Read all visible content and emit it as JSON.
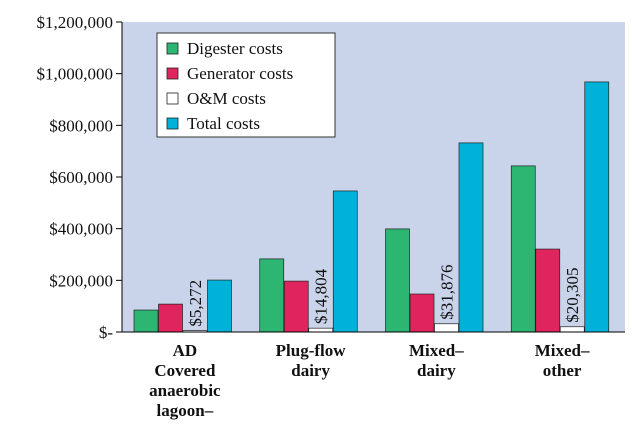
{
  "chart_data": {
    "type": "bar",
    "categories": [
      "AD Covered anaerobic lagoon–swine",
      "Plug-flow dairy",
      "Mixed–dairy",
      "Mixed–other"
    ],
    "series": [
      {
        "name": "Digester costs",
        "color": "#2db672",
        "values": [
          85000,
          283000,
          399000,
          643000
        ]
      },
      {
        "name": "Generator costs",
        "color": "#e0245e",
        "values": [
          108000,
          197000,
          147000,
          321000
        ]
      },
      {
        "name": "O&M costs",
        "color": "#ffffff",
        "values": [
          5272,
          14804,
          31876,
          20305
        ],
        "value_labels": [
          "$5,272",
          "$14,804",
          "$31,876",
          "$20,305"
        ]
      },
      {
        "name": "Total costs",
        "color": "#00b2d9",
        "values": [
          201000,
          546000,
          732000,
          968000
        ]
      }
    ],
    "ylim": [
      0,
      1200000
    ],
    "yticks": [
      {
        "value": 0,
        "label": "$-"
      },
      {
        "value": 200000,
        "label": "$200,000"
      },
      {
        "value": 400000,
        "label": "$400,000"
      },
      {
        "value": 600000,
        "label": "$600,000"
      },
      {
        "value": 800000,
        "label": "$800,000"
      },
      {
        "value": 1000000,
        "label": "$1,000,000"
      },
      {
        "value": 1200000,
        "label": "$1,200,000"
      }
    ],
    "legend": "upper-left",
    "plot_background": "#c9d3ea"
  }
}
